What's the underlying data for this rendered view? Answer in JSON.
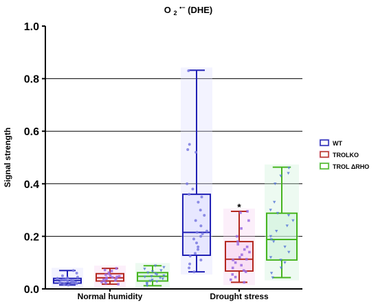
{
  "chart_data": {
    "type": "box",
    "title_main": "O",
    "title_sub": "2",
    "title_sup": "•−",
    "title_rest": " (DHE)",
    "ylabel": "Signal strength",
    "xlabel": "",
    "ylim": [
      0,
      1.0
    ],
    "yticks": [
      0.0,
      0.2,
      0.4,
      0.6,
      0.8,
      1.0
    ],
    "ytick_labels": [
      "0.0",
      "0.2",
      "0.4",
      "0.6",
      "0.8",
      "1.0"
    ],
    "gridlines": [
      0.2,
      0.4,
      0.6,
      0.8
    ],
    "legend_position": "right",
    "categories": [
      "Normal humidity",
      "Drought stress"
    ],
    "series": [
      {
        "name": "WT",
        "color": "#1f1fb4",
        "fill": "#dcdcff",
        "marker": "circle",
        "boxes": [
          {
            "min": 0.015,
            "q1": 0.022,
            "median": 0.032,
            "q3": 0.04,
            "max": 0.07,
            "points": [
              0.015,
              0.018,
              0.02,
              0.022,
              0.024,
              0.025,
              0.027,
              0.028,
              0.03,
              0.031,
              0.032,
              0.033,
              0.034,
              0.035,
              0.036,
              0.038,
              0.04,
              0.042,
              0.045,
              0.05,
              0.06,
              0.07
            ]
          },
          {
            "min": 0.065,
            "q1": 0.128,
            "median": 0.215,
            "q3": 0.36,
            "max": 0.832,
            "points": [
              0.065,
              0.08,
              0.095,
              0.11,
              0.125,
              0.135,
              0.15,
              0.16,
              0.175,
              0.19,
              0.2,
              0.21,
              0.215,
              0.22,
              0.24,
              0.26,
              0.28,
              0.3,
              0.33,
              0.35,
              0.36,
              0.38,
              0.4,
              0.52,
              0.53,
              0.55,
              0.83
            ]
          }
        ]
      },
      {
        "name": "TROLKO",
        "color": "#b4281e",
        "fill": "#f5d2f0",
        "marker": "square",
        "boxes": [
          {
            "min": 0.018,
            "q1": 0.03,
            "median": 0.042,
            "q3": 0.058,
            "max": 0.078,
            "points": [
              0.018,
              0.022,
              0.026,
              0.03,
              0.032,
              0.035,
              0.038,
              0.04,
              0.042,
              0.044,
              0.046,
              0.048,
              0.05,
              0.054,
              0.058,
              0.062,
              0.068,
              0.072,
              0.078
            ]
          },
          {
            "min": 0.025,
            "q1": 0.068,
            "median": 0.113,
            "q3": 0.18,
            "max": 0.295,
            "points": [
              0.025,
              0.035,
              0.045,
              0.055,
              0.065,
              0.07,
              0.08,
              0.09,
              0.1,
              0.11,
              0.113,
              0.12,
              0.13,
              0.14,
              0.15,
              0.16,
              0.17,
              0.18,
              0.2,
              0.23,
              0.26,
              0.29,
              0.295
            ]
          }
        ]
      },
      {
        "name": "TROL ΔRHO",
        "color": "#46b41e",
        "fill": "#ccf0d8",
        "marker": "triangle",
        "boxes": [
          {
            "min": 0.012,
            "q1": 0.03,
            "median": 0.048,
            "q3": 0.062,
            "max": 0.088,
            "points": [
              0.012,
              0.018,
              0.022,
              0.028,
              0.03,
              0.034,
              0.038,
              0.042,
              0.046,
              0.048,
              0.05,
              0.054,
              0.058,
              0.062,
              0.066,
              0.07,
              0.076,
              0.082,
              0.088
            ]
          },
          {
            "min": 0.043,
            "q1": 0.11,
            "median": 0.188,
            "q3": 0.288,
            "max": 0.463,
            "points": [
              0.043,
              0.06,
              0.08,
              0.1,
              0.11,
              0.12,
              0.14,
              0.16,
              0.18,
              0.188,
              0.2,
              0.22,
              0.24,
              0.26,
              0.28,
              0.288,
              0.3,
              0.33,
              0.4,
              0.43,
              0.44,
              0.46
            ]
          }
        ]
      }
    ],
    "annotations": [
      {
        "text": "*",
        "series": "TROLKO",
        "category": "Drought stress",
        "y": 0.31
      }
    ]
  }
}
